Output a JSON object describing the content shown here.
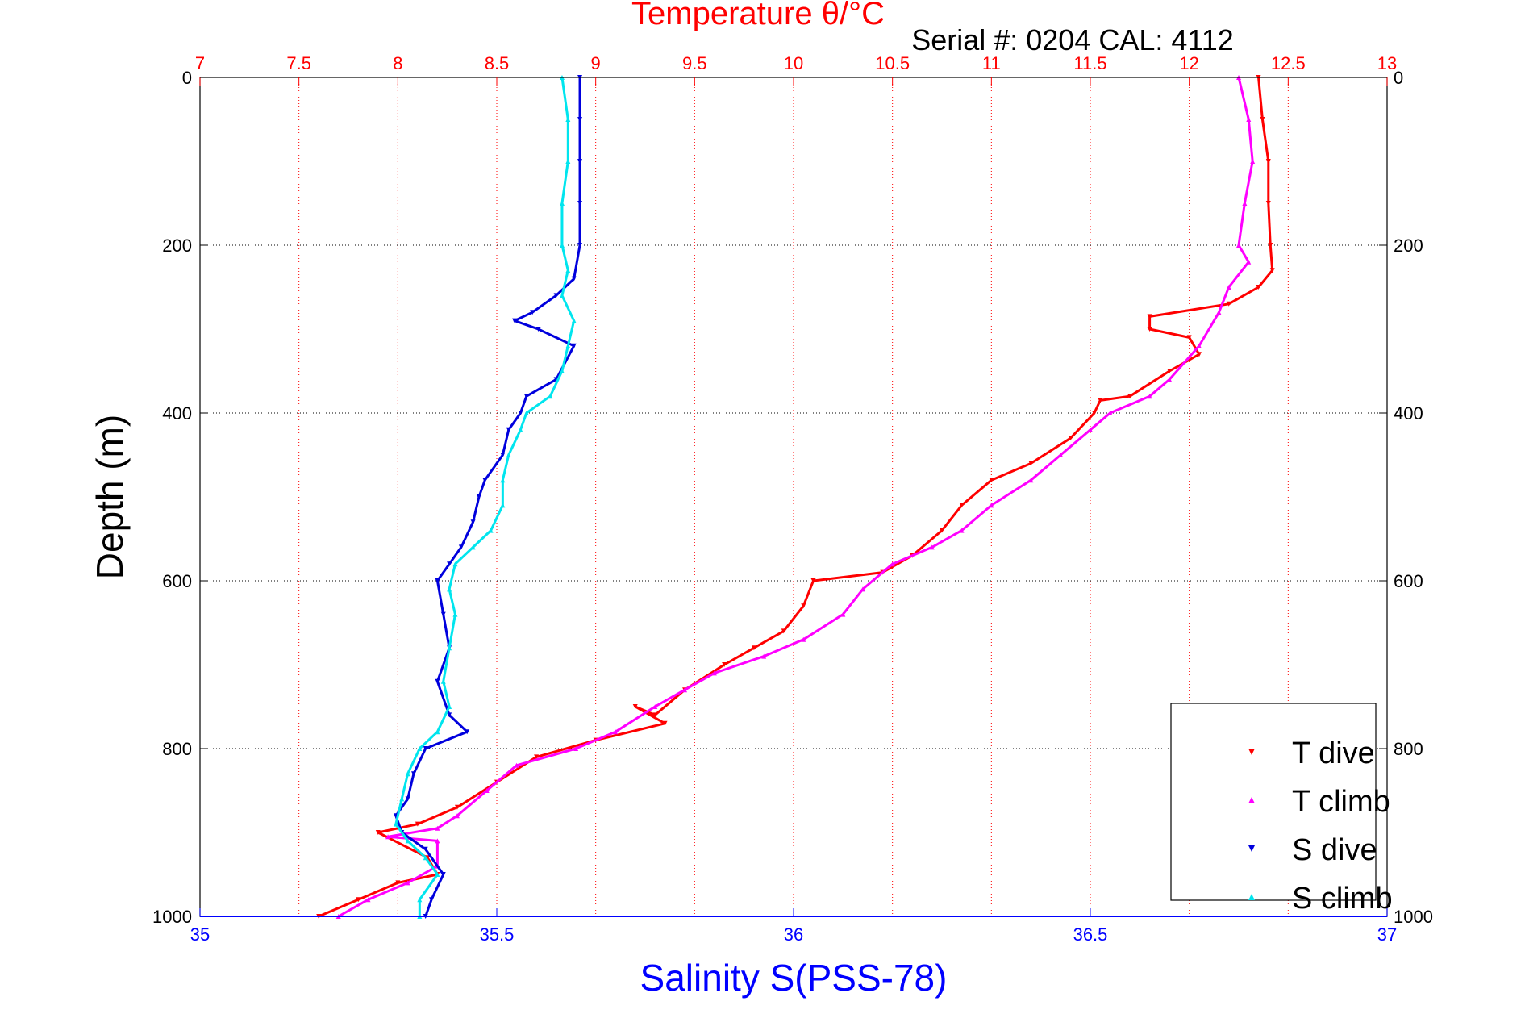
{
  "colors": {
    "temperature_axis": "#ff0000",
    "salinity_axis": "#0000ff",
    "t_dive": "#ff0000",
    "t_climb": "#ff00ff",
    "s_dive": "#0000dd",
    "s_climb": "#00e5ee",
    "grid": "#000000"
  },
  "chart_data": {
    "type": "scatter",
    "title": "Temperature θ/°C",
    "subtitle": "Serial #: 0204  CAL: 4112",
    "xlabel": "Salinity S(PSS-78)",
    "ylabel": "Depth (m)",
    "ylim": [
      1000,
      0
    ],
    "y_ticks": [
      0,
      200,
      400,
      600,
      800,
      1000
    ],
    "temperature_axis": {
      "range": [
        7,
        13
      ],
      "ticks": [
        "7",
        "7.5",
        "8",
        "8.5",
        "9",
        "9.5",
        "10",
        "10.5",
        "11",
        "11.5",
        "12",
        "12.5",
        "13"
      ]
    },
    "salinity_axis": {
      "range": [
        35,
        37
      ],
      "ticks": [
        "35",
        "35.5",
        "36",
        "36.5",
        "37"
      ]
    },
    "grid": true,
    "legend_placement": "bottom-right",
    "series": [
      {
        "name": "T dive",
        "axis": "temperature",
        "color": "#ff0000",
        "marker": "triangle-down",
        "points": [
          [
            12.35,
            0
          ],
          [
            12.37,
            50
          ],
          [
            12.4,
            100
          ],
          [
            12.4,
            150
          ],
          [
            12.41,
            200
          ],
          [
            12.42,
            230
          ],
          [
            12.35,
            250
          ],
          [
            12.2,
            270
          ],
          [
            11.8,
            285
          ],
          [
            11.8,
            300
          ],
          [
            12.0,
            310
          ],
          [
            12.05,
            330
          ],
          [
            11.9,
            350
          ],
          [
            11.7,
            380
          ],
          [
            11.55,
            385
          ],
          [
            11.52,
            400
          ],
          [
            11.4,
            430
          ],
          [
            11.2,
            460
          ],
          [
            11.0,
            480
          ],
          [
            10.85,
            510
          ],
          [
            10.75,
            540
          ],
          [
            10.6,
            570
          ],
          [
            10.45,
            590
          ],
          [
            10.1,
            600
          ],
          [
            10.05,
            630
          ],
          [
            9.95,
            660
          ],
          [
            9.8,
            680
          ],
          [
            9.65,
            700
          ],
          [
            9.45,
            730
          ],
          [
            9.3,
            760
          ],
          [
            9.2,
            750
          ],
          [
            9.35,
            770
          ],
          [
            9.0,
            790
          ],
          [
            8.7,
            810
          ],
          [
            8.5,
            840
          ],
          [
            8.3,
            870
          ],
          [
            8.1,
            890
          ],
          [
            7.9,
            900
          ],
          [
            8.15,
            930
          ],
          [
            8.2,
            950
          ],
          [
            8.0,
            960
          ],
          [
            7.8,
            980
          ],
          [
            7.6,
            1000
          ]
        ]
      },
      {
        "name": "T climb",
        "axis": "temperature",
        "color": "#ff00ff",
        "marker": "triangle-up",
        "points": [
          [
            12.25,
            0
          ],
          [
            12.3,
            50
          ],
          [
            12.32,
            100
          ],
          [
            12.28,
            150
          ],
          [
            12.25,
            200
          ],
          [
            12.3,
            220
          ],
          [
            12.2,
            250
          ],
          [
            12.15,
            280
          ],
          [
            12.05,
            320
          ],
          [
            11.9,
            360
          ],
          [
            11.8,
            380
          ],
          [
            11.6,
            400
          ],
          [
            11.5,
            420
          ],
          [
            11.35,
            450
          ],
          [
            11.2,
            480
          ],
          [
            11.0,
            510
          ],
          [
            10.85,
            540
          ],
          [
            10.7,
            560
          ],
          [
            10.5,
            580
          ],
          [
            10.35,
            610
          ],
          [
            10.25,
            640
          ],
          [
            10.05,
            670
          ],
          [
            9.85,
            690
          ],
          [
            9.6,
            710
          ],
          [
            9.45,
            730
          ],
          [
            9.3,
            750
          ],
          [
            9.1,
            780
          ],
          [
            8.9,
            800
          ],
          [
            8.6,
            820
          ],
          [
            8.45,
            850
          ],
          [
            8.3,
            880
          ],
          [
            8.2,
            895
          ],
          [
            7.95,
            905
          ],
          [
            8.2,
            910
          ],
          [
            8.2,
            940
          ],
          [
            8.05,
            960
          ],
          [
            7.85,
            980
          ],
          [
            7.7,
            1000
          ]
        ]
      },
      {
        "name": "S dive",
        "axis": "salinity",
        "color": "#0000dd",
        "marker": "triangle-down",
        "points": [
          [
            35.64,
            0
          ],
          [
            35.64,
            50
          ],
          [
            35.64,
            100
          ],
          [
            35.64,
            150
          ],
          [
            35.64,
            200
          ],
          [
            35.63,
            240
          ],
          [
            35.6,
            260
          ],
          [
            35.56,
            280
          ],
          [
            35.53,
            290
          ],
          [
            35.57,
            300
          ],
          [
            35.63,
            320
          ],
          [
            35.6,
            360
          ],
          [
            35.55,
            380
          ],
          [
            35.54,
            400
          ],
          [
            35.52,
            420
          ],
          [
            35.51,
            450
          ],
          [
            35.48,
            480
          ],
          [
            35.47,
            500
          ],
          [
            35.46,
            530
          ],
          [
            35.44,
            560
          ],
          [
            35.42,
            580
          ],
          [
            35.4,
            600
          ],
          [
            35.41,
            640
          ],
          [
            35.42,
            680
          ],
          [
            35.4,
            720
          ],
          [
            35.42,
            760
          ],
          [
            35.45,
            780
          ],
          [
            35.38,
            800
          ],
          [
            35.36,
            830
          ],
          [
            35.35,
            860
          ],
          [
            35.33,
            880
          ],
          [
            35.34,
            900
          ],
          [
            35.38,
            920
          ],
          [
            35.41,
            950
          ],
          [
            35.39,
            980
          ],
          [
            35.38,
            1000
          ]
        ]
      },
      {
        "name": "S climb",
        "axis": "salinity",
        "color": "#00e5ee",
        "marker": "triangle-up",
        "points": [
          [
            35.61,
            0
          ],
          [
            35.62,
            50
          ],
          [
            35.62,
            100
          ],
          [
            35.61,
            150
          ],
          [
            35.61,
            200
          ],
          [
            35.62,
            230
          ],
          [
            35.61,
            260
          ],
          [
            35.63,
            290
          ],
          [
            35.62,
            320
          ],
          [
            35.61,
            350
          ],
          [
            35.59,
            380
          ],
          [
            35.55,
            400
          ],
          [
            35.54,
            420
          ],
          [
            35.52,
            450
          ],
          [
            35.51,
            480
          ],
          [
            35.51,
            510
          ],
          [
            35.49,
            540
          ],
          [
            35.46,
            560
          ],
          [
            35.43,
            580
          ],
          [
            35.42,
            610
          ],
          [
            35.43,
            640
          ],
          [
            35.42,
            680
          ],
          [
            35.41,
            720
          ],
          [
            35.42,
            750
          ],
          [
            35.4,
            780
          ],
          [
            35.37,
            800
          ],
          [
            35.35,
            830
          ],
          [
            35.34,
            860
          ],
          [
            35.33,
            890
          ],
          [
            35.35,
            910
          ],
          [
            35.38,
            930
          ],
          [
            35.4,
            950
          ],
          [
            35.37,
            980
          ],
          [
            35.37,
            1000
          ]
        ]
      }
    ]
  }
}
